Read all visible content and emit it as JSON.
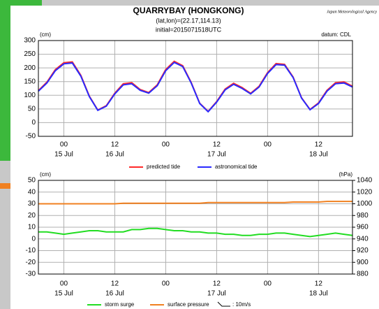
{
  "header": {
    "title": "QUARRYBAY (HONGKONG)",
    "location": "(lat,lon)=(22.17,114.13)",
    "initial": "initial=2015071518UTC",
    "agency": "Japan Meteorological Agency"
  },
  "chart_data": [
    {
      "type": "line",
      "y_label": "(cm)",
      "note": "datum: CDL",
      "x": [
        -6,
        -4,
        -2,
        0,
        2,
        4,
        6,
        8,
        10,
        12,
        14,
        16,
        18,
        20,
        22,
        24,
        26,
        28,
        30,
        32,
        34,
        36,
        38,
        40,
        42,
        44,
        46,
        48,
        50,
        52,
        54,
        56,
        58,
        60,
        62,
        64,
        66,
        68
      ],
      "xlim": [
        -6,
        68
      ],
      "xticks": [
        {
          "value": 0,
          "label": "00"
        },
        {
          "value": 12,
          "label": "12"
        },
        {
          "value": 24,
          "label": "00"
        },
        {
          "value": 36,
          "label": "12"
        },
        {
          "value": 48,
          "label": "00"
        },
        {
          "value": 60,
          "label": "12"
        }
      ],
      "date_labels": [
        {
          "value": 0,
          "label": "15 Jul"
        },
        {
          "value": 12,
          "label": "16 Jul"
        },
        {
          "value": 36,
          "label": "17 Jul"
        },
        {
          "value": 60,
          "label": "18 Jul"
        }
      ],
      "ylim": [
        -50,
        300
      ],
      "yticks": [
        300,
        250,
        200,
        150,
        100,
        50,
        0,
        -50
      ],
      "grid": true,
      "series": [
        {
          "name": "predicted tide",
          "color": "#ff2a2a",
          "values": [
            117,
            148,
            194,
            219,
            222,
            173,
            97,
            46,
            62,
            108,
            142,
            146,
            121,
            110,
            138,
            194,
            224,
            208,
            147,
            71,
            41,
            77,
            123,
            144,
            128,
            107,
            133,
            183,
            216,
            213,
            167,
            91,
            48,
            72,
            118,
            146,
            149,
            133
          ]
        },
        {
          "name": "astronomical tide",
          "color": "#2a2aff",
          "values": [
            115,
            145,
            190,
            215,
            218,
            170,
            95,
            45,
            60,
            105,
            138,
            142,
            118,
            108,
            135,
            190,
            220,
            205,
            145,
            70,
            40,
            75,
            120,
            140,
            125,
            105,
            130,
            180,
            212,
            210,
            165,
            90,
            47,
            70,
            115,
            142,
            145,
            130
          ]
        }
      ]
    },
    {
      "type": "line",
      "y_label": "(cm)",
      "y2_label": "(hPa)",
      "wind_legend": ": 10m/s",
      "x": [
        -6,
        -4,
        -2,
        0,
        2,
        4,
        6,
        8,
        10,
        12,
        14,
        16,
        18,
        20,
        22,
        24,
        26,
        28,
        30,
        32,
        34,
        36,
        38,
        40,
        42,
        44,
        46,
        48,
        50,
        52,
        54,
        56,
        58,
        60,
        62,
        64,
        66,
        68
      ],
      "xlim": [
        -6,
        68
      ],
      "xticks": [
        {
          "value": 0,
          "label": "00"
        },
        {
          "value": 12,
          "label": "12"
        },
        {
          "value": 24,
          "label": "00"
        },
        {
          "value": 36,
          "label": "12"
        },
        {
          "value": 48,
          "label": "00"
        },
        {
          "value": 60,
          "label": "12"
        }
      ],
      "date_labels": [
        {
          "value": 0,
          "label": "15 Jul"
        },
        {
          "value": 12,
          "label": "16 Jul"
        },
        {
          "value": 36,
          "label": "17 Jul"
        },
        {
          "value": 60,
          "label": "18 Jul"
        }
      ],
      "ylim": [
        -30,
        50
      ],
      "yticks": [
        50,
        40,
        30,
        20,
        10,
        0,
        -10,
        -20,
        -30
      ],
      "y2lim": [
        880,
        1040
      ],
      "y2ticks": [
        1040,
        1020,
        1000,
        980,
        960,
        940,
        920,
        900,
        880
      ],
      "grid": true,
      "series": [
        {
          "name": "storm surge",
          "color": "#22dd22",
          "values": [
            6,
            6,
            5,
            4,
            5,
            6,
            7,
            7,
            6,
            6,
            6,
            8,
            8,
            9,
            9,
            8,
            7,
            7,
            6,
            6,
            5,
            5,
            4,
            4,
            3,
            3,
            4,
            4,
            5,
            5,
            4,
            3,
            2,
            3,
            4,
            5,
            4,
            3
          ]
        },
        {
          "name": "surface pressure",
          "color": "#f08020",
          "axis": "y2",
          "values": [
            1000,
            1000,
            1000,
            1000,
            1000,
            1000,
            1000,
            1000,
            1000,
            1000,
            1001,
            1001,
            1001,
            1001,
            1001,
            1001,
            1001,
            1001,
            1001,
            1001,
            1002,
            1002,
            1002,
            1002,
            1002,
            1002,
            1002,
            1002,
            1002,
            1002,
            1003,
            1003,
            1003,
            1003,
            1004,
            1004,
            1004,
            1004
          ]
        }
      ]
    }
  ]
}
